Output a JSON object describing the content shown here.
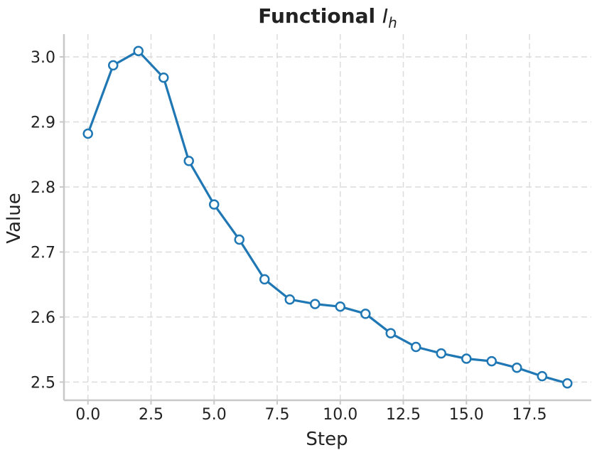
{
  "chart_data": {
    "type": "line",
    "title": "Functional ",
    "title_math": "I",
    "title_math_sub": "h",
    "xlabel": "Step",
    "ylabel": "Value",
    "xlim": [
      -0.95,
      19.95
    ],
    "ylim": [
      2.472,
      3.035
    ],
    "xticks": [
      0.0,
      2.5,
      5.0,
      7.5,
      10.0,
      12.5,
      15.0,
      17.5
    ],
    "xtick_labels": [
      "0.0",
      "2.5",
      "5.0",
      "7.5",
      "10.0",
      "12.5",
      "15.0",
      "17.5"
    ],
    "yticks": [
      2.5,
      2.6,
      2.7,
      2.8,
      2.9,
      3.0
    ],
    "ytick_labels": [
      "2.5",
      "2.6",
      "2.7",
      "2.8",
      "2.9",
      "3.0"
    ],
    "grid": true,
    "color": "#1f77b4",
    "series": [
      {
        "x": [
          0,
          1,
          2,
          3,
          4,
          5,
          6,
          7,
          8,
          9,
          10,
          11,
          12,
          13,
          14,
          15,
          16,
          17,
          18,
          19
        ],
        "values": [
          2.882,
          2.987,
          3.009,
          2.968,
          2.84,
          2.773,
          2.719,
          2.658,
          2.627,
          2.62,
          2.616,
          2.605,
          2.575,
          2.554,
          2.544,
          2.536,
          2.532,
          2.522,
          2.509,
          2.498
        ]
      }
    ]
  }
}
